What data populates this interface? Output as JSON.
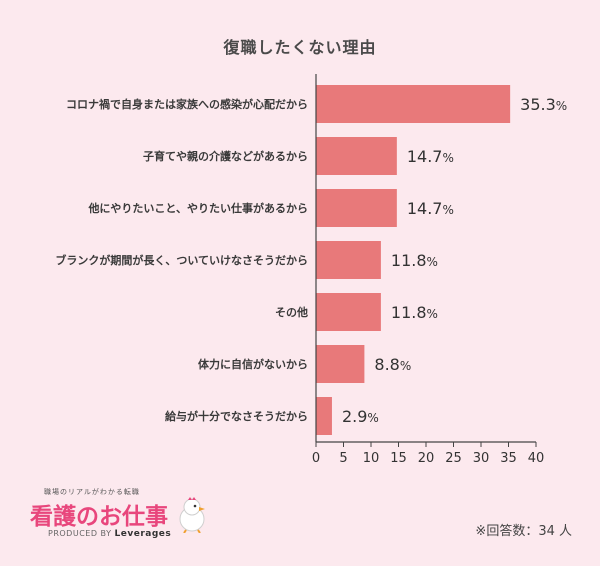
{
  "chart_data": {
    "type": "bar",
    "orientation": "horizontal",
    "title": "復職したくない理由",
    "categories": [
      "コロナ禍で自身または家族への感染が心配だから",
      "子育てや親の介護などがあるから",
      "他にやりたいこと、やりたい仕事があるから",
      "ブランクが期間が長く、ついていけなさそうだから",
      "その他",
      "体力に自信がないから",
      "給与が十分でなさそうだから"
    ],
    "values": [
      35.3,
      14.7,
      14.7,
      11.8,
      11.8,
      8.8,
      2.9
    ],
    "value_suffix": "%",
    "xlim": [
      0,
      40
    ],
    "xticks": [
      0,
      5,
      10,
      15,
      20,
      25,
      30,
      35,
      40
    ],
    "bar_color": "#e8797a",
    "grid": false
  },
  "logo": {
    "tagline": "職場のリアルがわかる転職",
    "brand": "看護のお仕事",
    "produced_by": "PRODUCED BY",
    "company": "Leverages"
  },
  "footnote": "※回答数：34 人",
  "colors": {
    "background": "#fce9ee",
    "bar": "#e8797a",
    "brand": "#e8467c"
  }
}
